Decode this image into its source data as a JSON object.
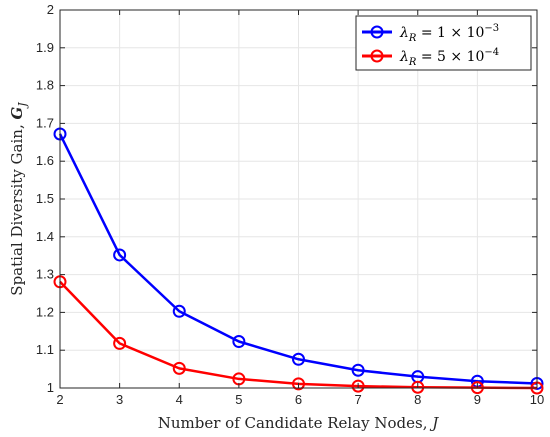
{
  "chart_data": {
    "type": "line",
    "xlabel": "Number of Candidate Relay Nodes, J",
    "ylabel": "Spatial Diversity Gain, G_J",
    "xlim": [
      2,
      10
    ],
    "ylim": [
      1,
      2
    ],
    "x": [
      2,
      3,
      4,
      5,
      6,
      7,
      8,
      9,
      10
    ],
    "xticks": [
      "2",
      "3",
      "4",
      "5",
      "6",
      "7",
      "8",
      "9",
      "10"
    ],
    "yticks": [
      "1",
      "1.1",
      "1.2",
      "1.3",
      "1.4",
      "1.5",
      "1.6",
      "1.7",
      "1.8",
      "1.9",
      "2"
    ],
    "grid": true,
    "legend_position": "top-right",
    "series": [
      {
        "name": "λ_R = 1 × 10^-3",
        "color": "#0000ff",
        "marker": "circle",
        "values": [
          1.672,
          1.352,
          1.203,
          1.123,
          1.076,
          1.047,
          1.03,
          1.018,
          1.012
        ]
      },
      {
        "name": "λ_R = 5 × 10^-4",
        "color": "#ff0000",
        "marker": "circle",
        "values": [
          1.281,
          1.118,
          1.052,
          1.024,
          1.011,
          1.005,
          1.002,
          1.001,
          1.0
        ]
      }
    ]
  }
}
